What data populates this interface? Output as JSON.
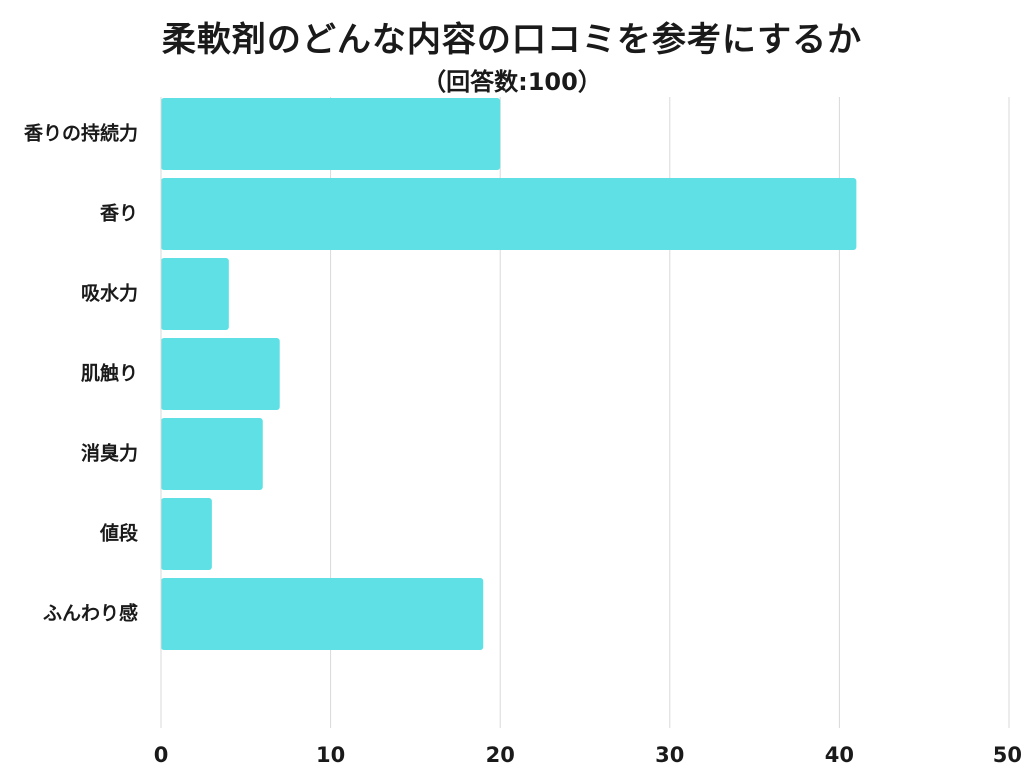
{
  "chart_data": {
    "type": "bar",
    "orientation": "horizontal",
    "title": "柔軟剤のどんな内容の口コミを参考にするか",
    "subtitle": "（回答数:100）",
    "categories": [
      "香りの持続力",
      "香り",
      "吸水力",
      "肌触り",
      "消臭力",
      "値段",
      "ふんわり感"
    ],
    "values": [
      20,
      41,
      4,
      7,
      6,
      3,
      19
    ],
    "xlim": [
      0,
      50
    ],
    "xticks": [
      0,
      10,
      20,
      30,
      40,
      50
    ],
    "grid": true,
    "bar_color": "#5ee0e5",
    "grid_color": "#d9d9d9",
    "text_color": "#1a1a1a"
  }
}
